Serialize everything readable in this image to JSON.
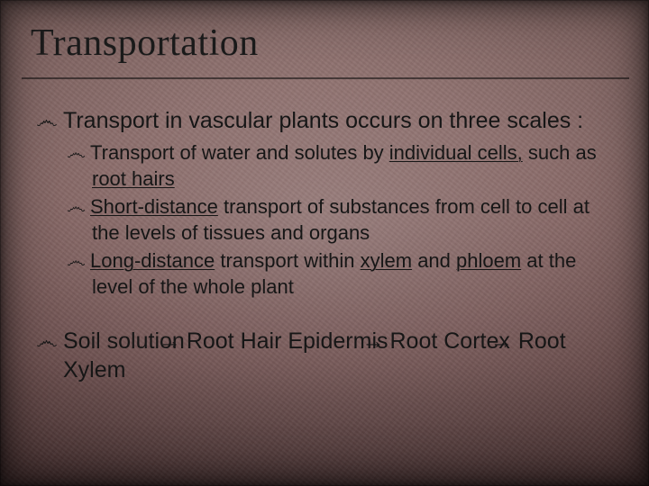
{
  "colors": {
    "background_base": "#7c5a58",
    "background_top": "#8c6b68",
    "background_bottom": "#4f3636",
    "vignette": "#000000",
    "title_color": "#1a1a1a",
    "body_color": "#161616",
    "rule_color": "rgba(10,10,10,0.55)"
  },
  "typography": {
    "title_font": "Georgia, serif",
    "title_size_pt": 32,
    "body_font": "Arial, sans-serif",
    "lvl1_size_pt": 19,
    "lvl2_size_pt": 17
  },
  "glyphs": {
    "bullet": "෴",
    "arrow": "→"
  },
  "title": "Transportation",
  "bullets": {
    "b1_a": "Transport in vascular plants occurs on three scales :",
    "b1_1a": "Transport of water and solutes by ",
    "b1_1u1": "individual cells,",
    "b1_1b": " such as ",
    "b1_1u2": "root hairs",
    "b1_2a": "Short-distance",
    "b1_2b": " transport of substances from cell to cell at the levels of tissues and organs",
    "b1_3a": "Long-distance",
    "b1_3b": " transport within ",
    "b1_3u1": "xylem",
    "b1_3c": " and ",
    "b1_3u2": "phloem",
    "b1_3d": " at the level of the whole plant",
    "b2_a": "Soil solution",
    "b2_b": "Root Hair Epidermis",
    "b2_c": "Root Cortex ",
    "b2_d": "Root Xylem"
  }
}
